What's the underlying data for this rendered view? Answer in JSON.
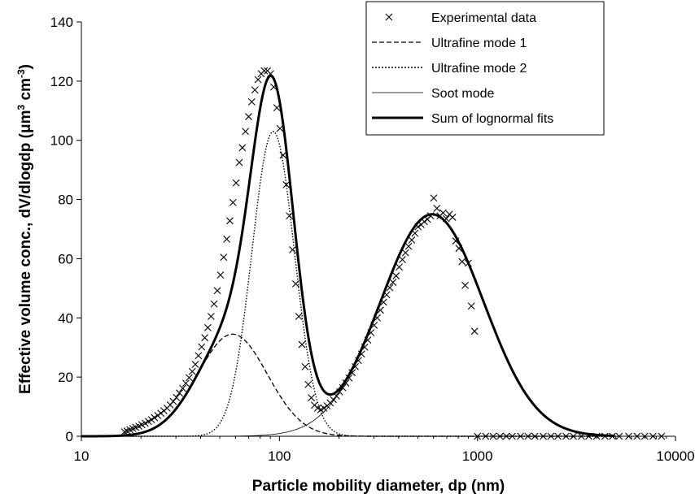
{
  "chart_data": {
    "type": "scatter",
    "x_scale": "log",
    "xlim": [
      10,
      10000
    ],
    "ylim": [
      0,
      140
    ],
    "x_ticks": [
      10,
      100,
      1000,
      10000
    ],
    "x_tick_labels": [
      "10",
      "100",
      "1000",
      "10000"
    ],
    "y_ticks": [
      0,
      20,
      40,
      60,
      80,
      100,
      120,
      140
    ],
    "y_tick_labels": [
      "0",
      "20",
      "40",
      "60",
      "80",
      "100",
      "120",
      "140"
    ],
    "xlabel": "Particle mobility diameter, dp (nm)",
    "ylabel_parts": [
      "Effective volume conc., dV/dlogdp (",
      "μ",
      "m",
      "3",
      " cm",
      "-3",
      ")"
    ],
    "legend_position": "top-right",
    "legend": [
      {
        "label": "Experimental data",
        "style": "marker-x"
      },
      {
        "label": "Ultrafine mode 1",
        "style": "dashed"
      },
      {
        "label": "Ultrafine mode 2",
        "style": "dotted"
      },
      {
        "label": "Soot mode",
        "style": "thin"
      },
      {
        "label": "Sum of lognormal fits",
        "style": "thick"
      }
    ],
    "modes": [
      {
        "name": "Ultrafine mode 1",
        "style": "dashed",
        "peak": 34.5,
        "median_nm": 58,
        "gsd": 1.5
      },
      {
        "name": "Ultrafine mode 2",
        "style": "dotted",
        "peak": 103,
        "median_nm": 93,
        "gsd": 1.28
      },
      {
        "name": "Soot mode",
        "style": "thin",
        "peak": 75,
        "median_nm": 590,
        "gsd": 1.82
      }
    ],
    "sum_style": "thick",
    "experimental": [
      [
        16.5,
        1.5
      ],
      [
        17,
        1.8
      ],
      [
        17.6,
        2.2
      ],
      [
        18.2,
        2.6
      ],
      [
        18.8,
        3.0
      ],
      [
        19.5,
        3.4
      ],
      [
        20.2,
        3.9
      ],
      [
        21,
        4.4
      ],
      [
        21.8,
        5.0
      ],
      [
        22.6,
        5.6
      ],
      [
        23.4,
        6.3
      ],
      [
        24.3,
        7.0
      ],
      [
        25.2,
        7.8
      ],
      [
        26.1,
        8.6
      ],
      [
        27.1,
        9.5
      ],
      [
        28.1,
        10.6
      ],
      [
        29.1,
        11.8
      ],
      [
        30.2,
        13.1
      ],
      [
        31.3,
        14.6
      ],
      [
        32.5,
        16.2
      ],
      [
        33.7,
        17.9
      ],
      [
        35,
        19.8
      ],
      [
        36.3,
        21.9
      ],
      [
        37.6,
        24.3
      ],
      [
        39,
        27.2
      ],
      [
        40.5,
        30.2
      ],
      [
        42,
        33.3
      ],
      [
        43.5,
        36.7
      ],
      [
        45.2,
        40.5
      ],
      [
        46.8,
        44.7
      ],
      [
        48.6,
        49.2
      ],
      [
        50.4,
        54.5
      ],
      [
        52.3,
        60.5
      ],
      [
        54.2,
        66.6
      ],
      [
        56.2,
        72.8
      ],
      [
        58.3,
        79.0
      ],
      [
        60.4,
        85.6
      ],
      [
        62.7,
        92.5
      ],
      [
        65,
        97.5
      ],
      [
        67.4,
        103
      ],
      [
        69.9,
        108
      ],
      [
        72.5,
        113
      ],
      [
        75.2,
        117
      ],
      [
        78,
        120.5
      ],
      [
        80.9,
        122.5
      ],
      [
        83.9,
        123.5
      ],
      [
        87,
        123.5
      ],
      [
        90.2,
        122.5
      ],
      [
        93.6,
        118
      ],
      [
        97.1,
        111
      ],
      [
        100.7,
        104
      ],
      [
        104.4,
        95
      ],
      [
        108.3,
        85
      ],
      [
        112.3,
        74.5
      ],
      [
        116.5,
        63
      ],
      [
        120.8,
        51.5
      ],
      [
        125.3,
        40.5
      ],
      [
        130,
        31
      ],
      [
        134.8,
        23.5
      ],
      [
        139.8,
        17.5
      ],
      [
        145,
        13
      ],
      [
        150.4,
        10.5
      ],
      [
        156,
        9.5
      ],
      [
        161.8,
        9.0
      ],
      [
        167.8,
        9.5
      ],
      [
        174,
        10.3
      ],
      [
        180.5,
        11.3
      ],
      [
        187.2,
        12.4
      ],
      [
        194.1,
        13.6
      ],
      [
        201.3,
        15.0
      ],
      [
        208.8,
        16.4
      ],
      [
        216.6,
        18.0
      ],
      [
        224.6,
        19.7
      ],
      [
        233,
        21.5
      ],
      [
        241.6,
        23.5
      ],
      [
        250.6,
        25.6
      ],
      [
        259.9,
        27.8
      ],
      [
        269.6,
        30.1
      ],
      [
        279.6,
        32.5
      ],
      [
        290,
        35.0
      ],
      [
        300.8,
        37.5
      ],
      [
        312,
        40.0
      ],
      [
        323.6,
        42.6
      ],
      [
        335.6,
        45.3
      ],
      [
        348,
        47.8
      ],
      [
        361,
        50.2
      ],
      [
        374.4,
        52.0
      ],
      [
        388.3,
        54.2
      ],
      [
        402.7,
        57.2
      ],
      [
        417.7,
        59.7
      ],
      [
        433.2,
        62.0
      ],
      [
        449.3,
        64.2
      ],
      [
        466,
        66.3
      ],
      [
        483.3,
        68.6
      ],
      [
        501.3,
        70.8
      ],
      [
        519.9,
        71.5
      ],
      [
        539.2,
        72.5
      ],
      [
        559.3,
        73.3
      ],
      [
        580,
        74.5
      ],
      [
        601.6,
        80.5
      ],
      [
        624,
        77.0
      ],
      [
        647,
        74.5
      ],
      [
        671,
        75.5
      ],
      [
        696,
        73.5
      ],
      [
        722,
        75.0
      ],
      [
        749,
        74.0
      ],
      [
        777,
        66.0
      ],
      [
        806,
        63.5
      ],
      [
        836,
        59.0
      ],
      [
        867,
        51.0
      ],
      [
        899,
        58.5
      ],
      [
        932,
        44.0
      ],
      [
        967,
        35.5
      ],
      [
        1000,
        0
      ],
      [
        1100,
        0
      ],
      [
        1200,
        0
      ],
      [
        1300,
        0
      ],
      [
        1400,
        0
      ],
      [
        1500,
        0
      ],
      [
        1650,
        0
      ],
      [
        1800,
        0
      ],
      [
        1950,
        0
      ],
      [
        2150,
        0
      ],
      [
        2350,
        0
      ],
      [
        2550,
        0
      ],
      [
        2800,
        0
      ],
      [
        3050,
        0
      ],
      [
        3350,
        0
      ],
      [
        3650,
        0
      ],
      [
        4000,
        0
      ],
      [
        4400,
        0
      ],
      [
        4800,
        0
      ],
      [
        5200,
        0
      ],
      [
        5800,
        0
      ],
      [
        6400,
        0
      ],
      [
        7000,
        0
      ],
      [
        7700,
        0
      ],
      [
        8500,
        0
      ]
    ]
  }
}
